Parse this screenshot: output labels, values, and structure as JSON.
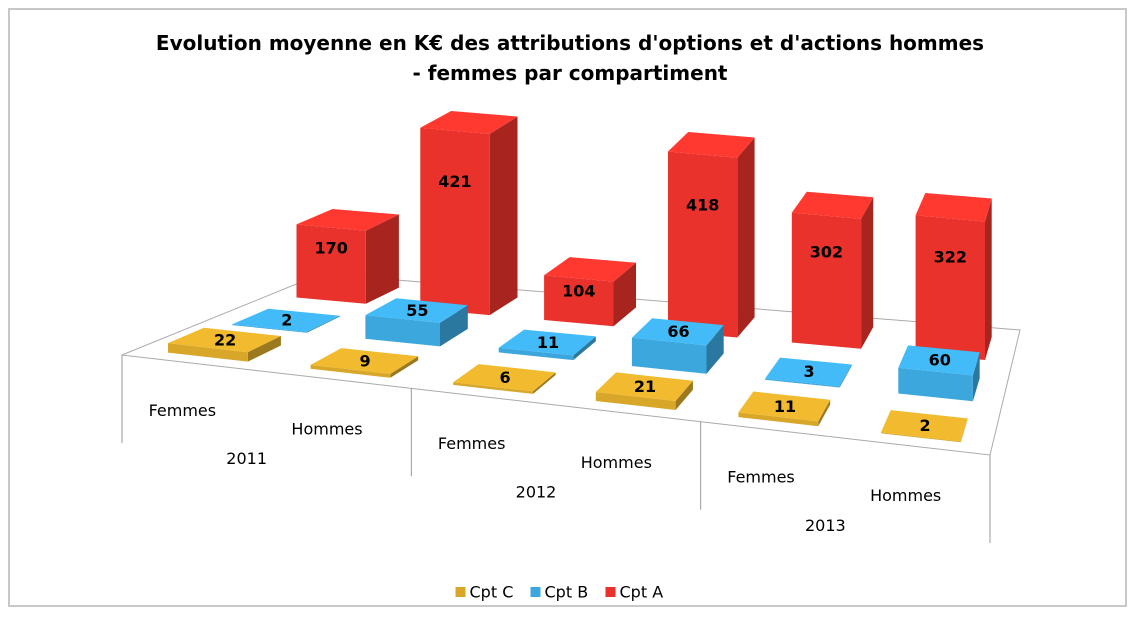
{
  "chart_data": {
    "type": "bar3d",
    "title": "Evolution moyenne en K€ des attributions d'options et d'actions hommes - femmes par compartiment",
    "groups": [
      "2011",
      "2012",
      "2013"
    ],
    "categories": [
      "Femmes",
      "Hommes",
      "Femmes",
      "Hommes",
      "Femmes",
      "Hommes"
    ],
    "series": [
      {
        "name": "Cpt C",
        "color": "#d8a72a",
        "values": [
          22,
          9,
          6,
          21,
          11,
          2
        ]
      },
      {
        "name": "Cpt B",
        "color": "#3ba7dd",
        "values": [
          2,
          55,
          11,
          66,
          3,
          60
        ]
      },
      {
        "name": "Cpt A",
        "color": "#e8322b",
        "values": [
          170,
          421,
          104,
          418,
          302,
          322
        ]
      }
    ],
    "legend": "bottom"
  }
}
